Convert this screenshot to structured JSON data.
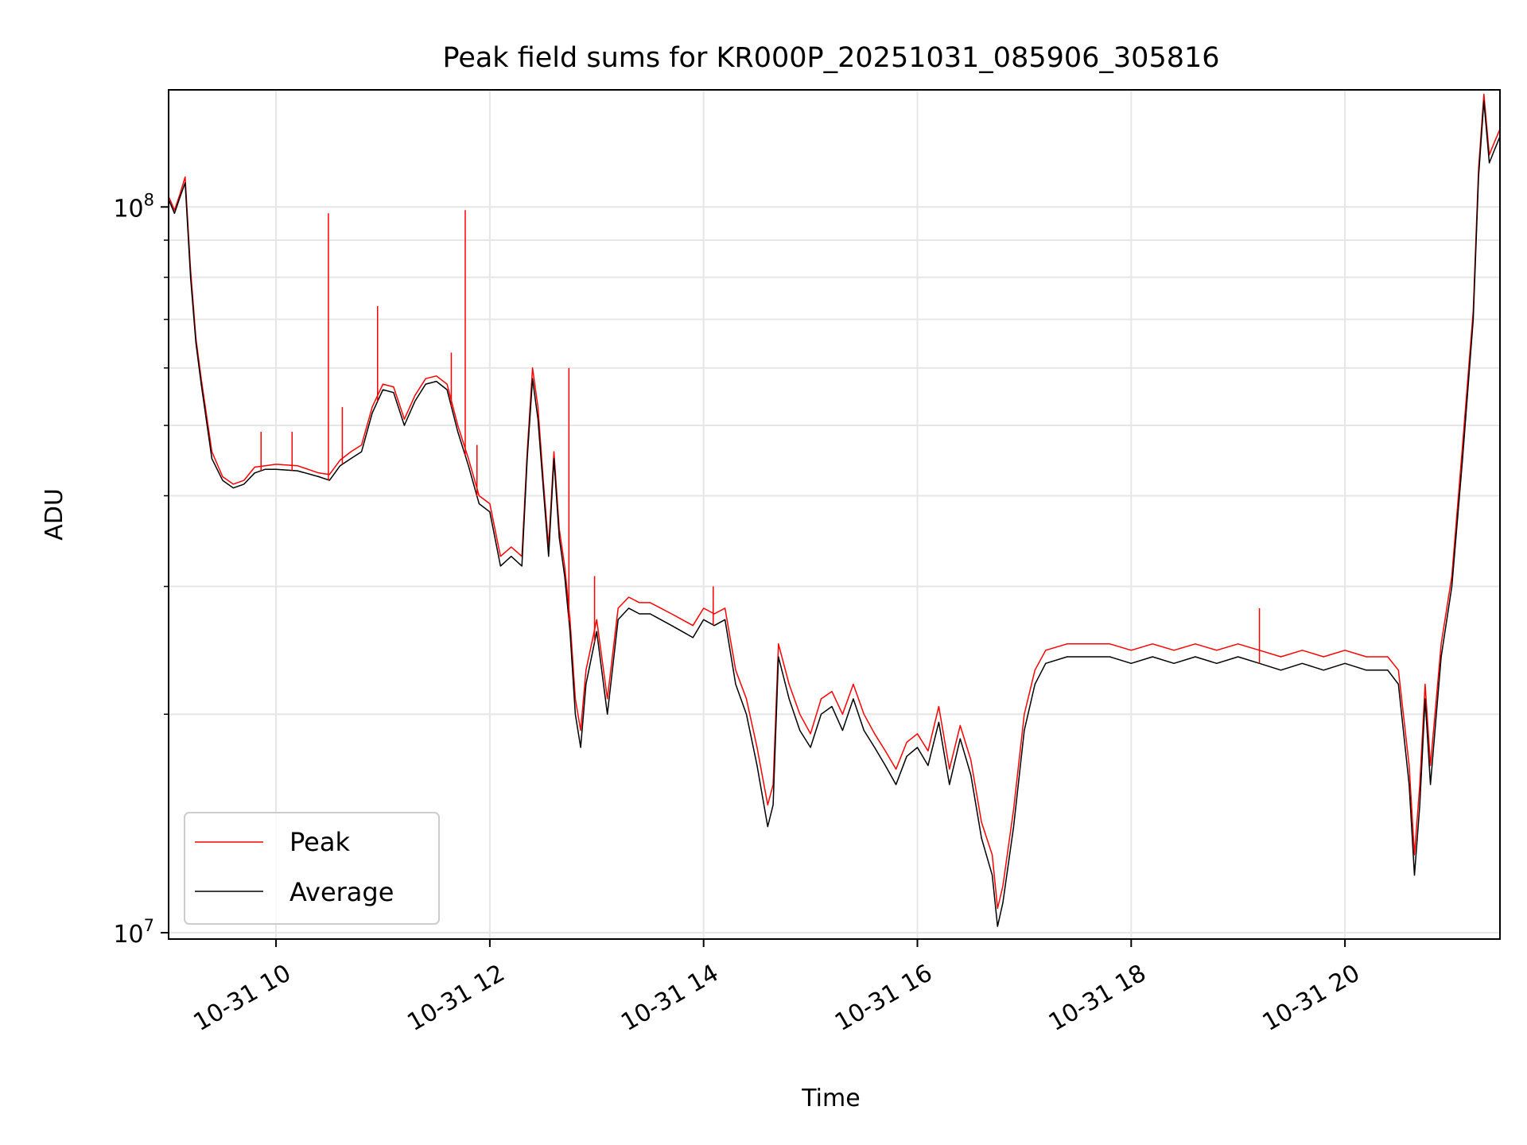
{
  "chart_data": {
    "type": "line",
    "title": "Peak field sums for KR000P_20251031_085906_305816",
    "xlabel": "Time",
    "ylabel": "ADU",
    "yscale": "log",
    "ylim": [
      9800000,
      145000000
    ],
    "xlim": [
      8.995,
      21.45
    ],
    "x_ticks": [
      {
        "hour": 10,
        "label": "10-31 10"
      },
      {
        "hour": 12,
        "label": "10-31 12"
      },
      {
        "hour": 14,
        "label": "10-31 14"
      },
      {
        "hour": 16,
        "label": "10-31 16"
      },
      {
        "hour": 18,
        "label": "10-31 18"
      },
      {
        "hour": 20,
        "label": "10-31 20"
      }
    ],
    "y_ticks": [
      {
        "value": 10000000,
        "base": "10",
        "exp": "7"
      },
      {
        "value": 100000000,
        "base": "10",
        "exp": "8"
      }
    ],
    "y_minor_ticks": [
      20000000,
      30000000,
      40000000,
      50000000,
      60000000,
      70000000,
      80000000,
      90000000
    ],
    "grid": true,
    "legend_position": "lower-left",
    "series": [
      {
        "name": "Average",
        "color": "#000000",
        "x": [
          9.0,
          9.05,
          9.1,
          9.15,
          9.2,
          9.25,
          9.3,
          9.4,
          9.5,
          9.6,
          9.7,
          9.8,
          9.9,
          10.0,
          10.2,
          10.4,
          10.5,
          10.6,
          10.7,
          10.8,
          10.9,
          11.0,
          11.1,
          11.2,
          11.3,
          11.4,
          11.5,
          11.6,
          11.7,
          11.8,
          11.9,
          12.0,
          12.1,
          12.2,
          12.3,
          12.35,
          12.4,
          12.45,
          12.5,
          12.55,
          12.6,
          12.65,
          12.7,
          12.75,
          12.8,
          12.85,
          12.9,
          13.0,
          13.1,
          13.2,
          13.3,
          13.4,
          13.5,
          13.6,
          13.7,
          13.8,
          13.9,
          14.0,
          14.1,
          14.2,
          14.3,
          14.4,
          14.5,
          14.6,
          14.65,
          14.7,
          14.8,
          14.9,
          15.0,
          15.1,
          15.2,
          15.3,
          15.4,
          15.5,
          15.6,
          15.7,
          15.8,
          15.9,
          16.0,
          16.1,
          16.2,
          16.3,
          16.4,
          16.5,
          16.6,
          16.7,
          16.75,
          16.8,
          16.9,
          17.0,
          17.1,
          17.2,
          17.4,
          17.6,
          17.8,
          18.0,
          18.2,
          18.4,
          18.6,
          18.8,
          19.0,
          19.2,
          19.4,
          19.6,
          19.8,
          20.0,
          20.2,
          20.4,
          20.5,
          20.6,
          20.65,
          20.7,
          20.75,
          20.8,
          20.9,
          21.0,
          21.1,
          21.2,
          21.25,
          21.3,
          21.35,
          21.4,
          21.45
        ],
        "values": [
          102000000,
          98000000,
          103000000,
          108000000,
          80000000,
          65000000,
          57000000,
          45000000,
          42000000,
          41000000,
          41500000,
          43000000,
          43500000,
          43500000,
          43300000,
          42500000,
          42000000,
          44000000,
          45000000,
          46000000,
          52000000,
          56000000,
          55500000,
          50000000,
          54000000,
          57000000,
          57500000,
          56000000,
          49000000,
          44000000,
          39000000,
          38000000,
          32000000,
          33000000,
          32000000,
          45000000,
          58000000,
          51000000,
          41000000,
          33000000,
          45000000,
          35000000,
          31000000,
          26000000,
          20000000,
          18000000,
          22000000,
          26000000,
          20000000,
          27000000,
          28000000,
          27500000,
          27500000,
          27000000,
          26500000,
          26000000,
          25500000,
          27000000,
          26500000,
          27000000,
          22000000,
          20000000,
          17000000,
          14000000,
          15000000,
          24000000,
          21000000,
          19000000,
          18000000,
          20000000,
          20500000,
          19000000,
          21000000,
          19000000,
          18000000,
          17000000,
          16000000,
          17500000,
          18000000,
          17000000,
          19500000,
          16000000,
          18500000,
          16500000,
          13500000,
          12000000,
          10200000,
          11000000,
          14000000,
          19000000,
          22000000,
          23500000,
          24000000,
          24000000,
          24000000,
          23500000,
          24000000,
          23500000,
          24000000,
          23500000,
          24000000,
          23500000,
          23000000,
          23500000,
          23000000,
          23500000,
          23000000,
          23000000,
          22000000,
          16000000,
          12000000,
          15000000,
          21000000,
          16000000,
          24000000,
          30000000,
          45000000,
          70000000,
          110000000,
          140000000,
          115000000,
          120000000,
          125000000
        ]
      },
      {
        "name": "Peak",
        "color": "#ff0000",
        "x": [
          9.0,
          9.05,
          9.1,
          9.15,
          9.2,
          9.25,
          9.3,
          9.4,
          9.5,
          9.6,
          9.7,
          9.8,
          9.9,
          10.0,
          10.2,
          10.4,
          10.5,
          10.6,
          10.7,
          10.8,
          10.9,
          11.0,
          11.1,
          11.2,
          11.3,
          11.4,
          11.5,
          11.6,
          11.7,
          11.8,
          11.9,
          12.0,
          12.1,
          12.2,
          12.3,
          12.35,
          12.4,
          12.45,
          12.5,
          12.55,
          12.6,
          12.65,
          12.7,
          12.75,
          12.8,
          12.85,
          12.9,
          13.0,
          13.1,
          13.2,
          13.3,
          13.4,
          13.5,
          13.6,
          13.7,
          13.8,
          13.9,
          14.0,
          14.1,
          14.2,
          14.3,
          14.4,
          14.5,
          14.6,
          14.65,
          14.7,
          14.8,
          14.9,
          15.0,
          15.1,
          15.2,
          15.3,
          15.4,
          15.5,
          15.6,
          15.7,
          15.8,
          15.9,
          16.0,
          16.1,
          16.2,
          16.3,
          16.4,
          16.5,
          16.6,
          16.7,
          16.75,
          16.8,
          16.9,
          17.0,
          17.1,
          17.2,
          17.4,
          17.6,
          17.8,
          18.0,
          18.2,
          18.4,
          18.6,
          18.8,
          19.0,
          19.2,
          19.4,
          19.6,
          19.8,
          20.0,
          20.2,
          20.4,
          20.5,
          20.6,
          20.65,
          20.7,
          20.75,
          20.8,
          20.9,
          21.0,
          21.1,
          21.2,
          21.25,
          21.3,
          21.35,
          21.4,
          21.45
        ],
        "values": [
          103000000,
          99000000,
          104000000,
          110000000,
          82000000,
          66000000,
          58000000,
          46000000,
          42500000,
          41500000,
          42000000,
          43800000,
          44000000,
          44200000,
          44000000,
          43000000,
          42800000,
          44800000,
          46000000,
          47000000,
          53000000,
          57000000,
          56500000,
          51000000,
          55000000,
          58000000,
          58500000,
          57000000,
          50000000,
          45000000,
          40000000,
          39000000,
          33000000,
          34000000,
          33000000,
          46000000,
          60000000,
          53000000,
          42000000,
          34000000,
          46000000,
          36000000,
          32000000,
          27000000,
          21000000,
          19000000,
          23000000,
          27000000,
          21000000,
          28000000,
          29000000,
          28500000,
          28500000,
          28000000,
          27500000,
          27000000,
          26500000,
          28000000,
          27500000,
          28000000,
          23000000,
          21000000,
          18000000,
          15000000,
          16000000,
          25000000,
          22000000,
          20000000,
          18800000,
          21000000,
          21500000,
          20000000,
          22000000,
          20000000,
          18800000,
          17800000,
          16800000,
          18300000,
          18800000,
          17800000,
          20500000,
          16800000,
          19300000,
          17300000,
          14200000,
          12800000,
          10800000,
          11600000,
          14800000,
          20000000,
          23000000,
          24500000,
          25000000,
          25000000,
          25000000,
          24500000,
          25000000,
          24500000,
          25000000,
          24500000,
          25000000,
          24500000,
          24000000,
          24500000,
          24000000,
          24500000,
          24000000,
          24000000,
          23000000,
          17000000,
          12800000,
          16000000,
          22000000,
          17000000,
          25000000,
          31000000,
          47000000,
          72000000,
          113000000,
          143000000,
          118000000,
          123000000,
          128000000
        ]
      }
    ],
    "peak_spikes": [
      {
        "x": 9.86,
        "value": 49000000
      },
      {
        "x": 10.15,
        "value": 49000000
      },
      {
        "x": 10.49,
        "value": 98000000
      },
      {
        "x": 10.62,
        "value": 53000000
      },
      {
        "x": 10.95,
        "value": 73000000
      },
      {
        "x": 11.64,
        "value": 63000000
      },
      {
        "x": 11.77,
        "value": 99000000
      },
      {
        "x": 11.88,
        "value": 47000000
      },
      {
        "x": 12.74,
        "value": 60000000
      },
      {
        "x": 12.98,
        "value": 31000000
      },
      {
        "x": 14.09,
        "value": 30000000
      },
      {
        "x": 19.2,
        "value": 28000000
      }
    ]
  }
}
